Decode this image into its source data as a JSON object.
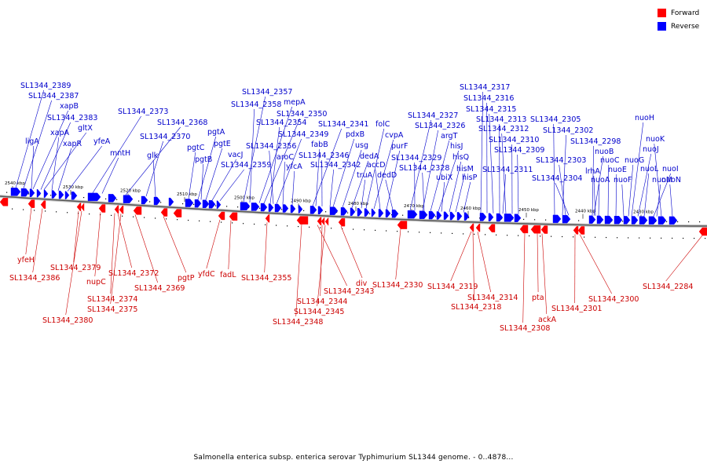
{
  "legend": {
    "forward": {
      "label": "Forward",
      "color": "#ff0000"
    },
    "reverse": {
      "label": "Reverse",
      "color": "#0000ff"
    }
  },
  "caption": "Salmonella enterica subsp. enterica serovar Typhimurium SL1344 genome. - 0..4878...",
  "colors": {
    "forward_label": "#cc0000",
    "reverse_label": "#0000cc",
    "backbone": "#555555"
  },
  "kbp_ticks": [
    "2540 kbp",
    "2530 kbp",
    "2520 kbp",
    "2510 kbp",
    "2500 kbp",
    "2490 kbp",
    "2480 kbp",
    "2470 kbp",
    "2460 kbp",
    "2450 kbp",
    "2440 kbp",
    "2430 kbp"
  ],
  "reverse_labels": [
    "SL1344_2389",
    "SL1344_2387",
    "xapB",
    "SL1344_2383",
    "gltX",
    "xapA",
    "ligA",
    "xapR",
    "yfeA",
    "SL1344_2373",
    "mntH",
    "SL1344_2368",
    "SL1344_2370",
    "glk",
    "pgtC",
    "pgtA",
    "pgtB",
    "pgtE",
    "vacJ",
    "SL1344_2359",
    "SL1344_2357",
    "SL1344_2358",
    "mepA",
    "SL1344_2350",
    "SL1344_2354",
    "SL1344_2349",
    "SL1344_2356",
    "aroC",
    "yfcA",
    "SL1344_2341",
    "fabB",
    "SL1344_2346",
    "SL1344_2342",
    "pdxB",
    "usg",
    "dedA",
    "truA",
    "folC",
    "cvpA",
    "accD",
    "purF",
    "dedD",
    "SL1344_2327",
    "SL1344_2326",
    "argT",
    "hisJ",
    "SL1344_2329",
    "SL1344_2328",
    "ubiX",
    "hisQ",
    "hisM",
    "hisP",
    "SL1344_2317",
    "SL1344_2316",
    "SL1344_2315",
    "SL1344_2313",
    "SL1344_2312",
    "SL1344_2310",
    "SL1344_2309",
    "SL1344_2311",
    "SL1344_2305",
    "SL1344_2302",
    "SL1344_2303",
    "SL1344_2304",
    "SL1344_2298",
    "nuoB",
    "lrhA",
    "nuoA",
    "nuoC",
    "nuoE",
    "nuoF",
    "nuoG",
    "nuoH",
    "nuoJ",
    "nuoL",
    "nuoI",
    "nuoM",
    "nuoK",
    "nuoN"
  ],
  "forward_labels": [
    "yfeH",
    "SL1344_2386",
    "SL1344_2379",
    "nupC",
    "SL1344_2380",
    "SL1344_2372",
    "SL1344_2374",
    "SL1344_2375",
    "SL1344_2369",
    "pgtP",
    "yfdC",
    "fadL",
    "SL1344_2355",
    "SL1344_2343",
    "SL1344_2344",
    "SL1344_2345",
    "SL1344_2348",
    "div",
    "SL1344_2330",
    "SL1344_2319",
    "SL1344_2314",
    "SL1344_2318",
    "pta",
    "ackA",
    "SL1344_2308",
    "SL1344_2301",
    "SL1344_2300",
    "SL1344_2284"
  ]
}
